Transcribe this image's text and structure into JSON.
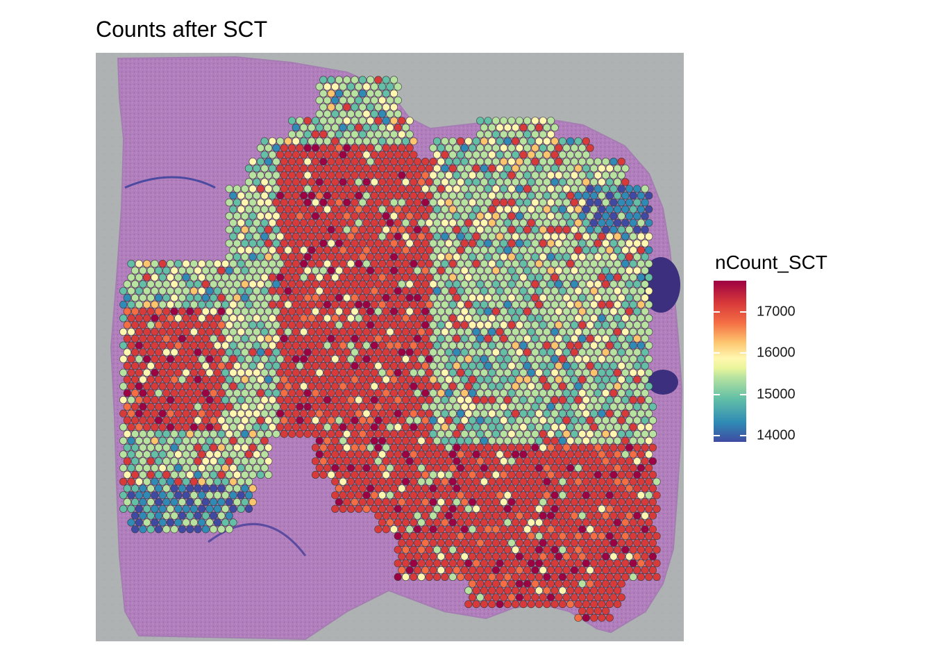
{
  "title": "Counts after SCT",
  "chart_data": {
    "type": "scatter",
    "title": "Counts after SCT",
    "xlabel": "",
    "ylabel": "",
    "background": "H&E-stained mouse brain coronal tissue section",
    "legend": {
      "title": "nCount_SCT",
      "placement": "right",
      "range": [
        13850,
        17750
      ],
      "ticks": [
        14000,
        15000,
        16000,
        17000
      ],
      "tick_labels": [
        "14000",
        "15000",
        "16000",
        "17000"
      ],
      "colors": [
        "#3f4ba2",
        "#2f8ab5",
        "#63c0a6",
        "#b7e29f",
        "#fff7b0",
        "#fdc46e",
        "#f46d43",
        "#d83a3a",
        "#9e0142"
      ]
    },
    "spots_summary": "Visium spots (~2700) colored by nCount_SCT; high counts (red, ~17000+) in cortex, striatum and lower-right regions; mid values (green/yellow, ~15000) in upper-right and center-right; low values (blue, ~14000) in lower-left hippocampal area."
  }
}
